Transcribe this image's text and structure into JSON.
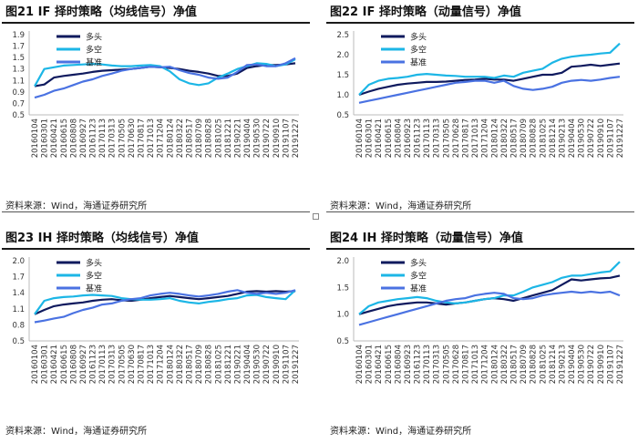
{
  "colors": {
    "long": "#0f1a5e",
    "longshort": "#1cb6e6",
    "benchmark": "#4a72e2"
  },
  "panels": [
    {
      "title": "图21 IF 择时策略（均线信号）净值",
      "source": "资料来源：Wind，海通证券研究所",
      "chart_data": {
        "type": "line",
        "title": "图21 IF 择时策略（均线信号）净值",
        "yticks": [
          "0.5",
          "0.7",
          "0.9",
          "1.1",
          "1.3",
          "1.5",
          "1.7",
          "1.9"
        ],
        "ylim": [
          0.5,
          1.9
        ],
        "xticks": [
          "20160104",
          "20160301",
          "20160421",
          "20160615",
          "20160808",
          "20160927",
          "20161123",
          "20170113",
          "20170313",
          "20170505",
          "20170630",
          "20170817",
          "20171013",
          "20171204",
          "20180124",
          "20180322",
          "20180517",
          "20180709",
          "20180828",
          "20181025",
          "20181221",
          "20190221",
          "20190404",
          "20190530",
          "20190722",
          "20190910",
          "20191107",
          "20191227"
        ],
        "series": [
          {
            "name": "多头",
            "key": "long",
            "values": [
              1.0,
              1.03,
              1.15,
              1.18,
              1.2,
              1.22,
              1.25,
              1.27,
              1.28,
              1.29,
              1.3,
              1.32,
              1.34,
              1.33,
              1.32,
              1.3,
              1.27,
              1.25,
              1.22,
              1.18,
              1.18,
              1.22,
              1.32,
              1.35,
              1.37,
              1.37,
              1.38,
              1.4
            ]
          },
          {
            "name": "多空",
            "key": "longshort",
            "values": [
              1.0,
              1.3,
              1.33,
              1.36,
              1.37,
              1.38,
              1.39,
              1.38,
              1.36,
              1.35,
              1.35,
              1.36,
              1.37,
              1.35,
              1.26,
              1.12,
              1.05,
              1.02,
              1.05,
              1.15,
              1.22,
              1.3,
              1.35,
              1.4,
              1.39,
              1.35,
              1.38,
              1.47
            ]
          },
          {
            "name": "基准",
            "key": "benchmark",
            "values": [
              0.8,
              0.85,
              0.92,
              0.96,
              1.02,
              1.08,
              1.12,
              1.18,
              1.22,
              1.27,
              1.3,
              1.32,
              1.34,
              1.33,
              1.34,
              1.28,
              1.23,
              1.2,
              1.15,
              1.13,
              1.15,
              1.25,
              1.37,
              1.38,
              1.35,
              1.35,
              1.4,
              1.49
            ]
          }
        ]
      }
    },
    {
      "title": "图22 IF 择时策略（动量信号）净值",
      "source": "资料来源：Wind，海通证券研究所",
      "chart_data": {
        "type": "line",
        "title": "图22 IF 择时策略（动量信号）净值",
        "yticks": [
          "0.5",
          "1.0",
          "1.5",
          "2.0",
          "2.5"
        ],
        "ylim": [
          0.5,
          2.5
        ],
        "xticks": [
          "20160104",
          "20160301",
          "20160421",
          "20160615",
          "20160804",
          "20160923",
          "20161123",
          "20170113",
          "20170313",
          "20170505",
          "20170628",
          "20170817",
          "20171013",
          "20171204",
          "20180124",
          "20180322",
          "20180517",
          "20180709",
          "20180828",
          "20181025",
          "20181214",
          "20190213",
          "20190404",
          "20190530",
          "20190722",
          "20190910",
          "20191107",
          "20191227"
        ],
        "series": [
          {
            "name": "多头",
            "key": "long",
            "values": [
              1.0,
              1.08,
              1.15,
              1.2,
              1.25,
              1.28,
              1.3,
              1.32,
              1.32,
              1.33,
              1.35,
              1.37,
              1.38,
              1.4,
              1.38,
              1.38,
              1.35,
              1.4,
              1.45,
              1.5,
              1.5,
              1.55,
              1.7,
              1.72,
              1.75,
              1.72,
              1.75,
              1.78
            ]
          },
          {
            "name": "多空",
            "key": "longshort",
            "values": [
              1.0,
              1.25,
              1.35,
              1.4,
              1.42,
              1.45,
              1.5,
              1.52,
              1.5,
              1.48,
              1.47,
              1.45,
              1.45,
              1.45,
              1.42,
              1.48,
              1.45,
              1.55,
              1.6,
              1.65,
              1.8,
              1.9,
              1.95,
              1.98,
              2.0,
              2.03,
              2.05,
              2.28
            ]
          },
          {
            "name": "基准",
            "key": "benchmark",
            "values": [
              0.8,
              0.85,
              0.9,
              0.95,
              1.0,
              1.05,
              1.1,
              1.15,
              1.2,
              1.25,
              1.3,
              1.32,
              1.35,
              1.35,
              1.3,
              1.35,
              1.22,
              1.15,
              1.12,
              1.15,
              1.2,
              1.3,
              1.35,
              1.37,
              1.35,
              1.38,
              1.42,
              1.45
            ]
          }
        ]
      }
    },
    {
      "title": "图23 IH 择时策略（均线信号）净值",
      "source": "资料来源：Wind，海通证券研究所",
      "chart_data": {
        "type": "line",
        "title": "图23 IH 择时策略（均线信号）净值",
        "yticks": [
          "0.5",
          "0.8",
          "1.1",
          "1.4",
          "1.7",
          "2.0"
        ],
        "ylim": [
          0.5,
          2.0
        ],
        "xticks": [
          "20160104",
          "20160301",
          "20160421",
          "20160615",
          "20160808",
          "20160927",
          "20161123",
          "20170113",
          "20170313",
          "20170505",
          "20170630",
          "20170817",
          "20171013",
          "20171204",
          "20180124",
          "20180322",
          "20180517",
          "20180709",
          "20180828",
          "20181025",
          "20181221",
          "20190221",
          "20190404",
          "20190530",
          "20190722",
          "20190910",
          "20191107",
          "20191227"
        ],
        "series": [
          {
            "name": "多头",
            "key": "long",
            "values": [
              1.0,
              1.08,
              1.15,
              1.18,
              1.2,
              1.22,
              1.25,
              1.27,
              1.28,
              1.26,
              1.25,
              1.27,
              1.3,
              1.32,
              1.34,
              1.32,
              1.3,
              1.28,
              1.3,
              1.32,
              1.34,
              1.38,
              1.42,
              1.43,
              1.42,
              1.43,
              1.42,
              1.43
            ]
          },
          {
            "name": "多空",
            "key": "longshort",
            "values": [
              1.0,
              1.25,
              1.3,
              1.32,
              1.33,
              1.35,
              1.36,
              1.35,
              1.34,
              1.3,
              1.28,
              1.27,
              1.27,
              1.28,
              1.3,
              1.25,
              1.22,
              1.2,
              1.23,
              1.25,
              1.28,
              1.3,
              1.35,
              1.36,
              1.32,
              1.3,
              1.28,
              1.45
            ]
          },
          {
            "name": "基准",
            "key": "benchmark",
            "values": [
              0.85,
              0.88,
              0.92,
              0.95,
              1.02,
              1.08,
              1.12,
              1.18,
              1.2,
              1.25,
              1.28,
              1.3,
              1.35,
              1.38,
              1.4,
              1.38,
              1.35,
              1.33,
              1.35,
              1.38,
              1.42,
              1.45,
              1.4,
              1.38,
              1.4,
              1.38,
              1.4,
              1.45
            ]
          }
        ]
      }
    },
    {
      "title": "图24 IH 择时策略（动量信号）净值",
      "source": "资料来源：Wind，海通证券研究所",
      "chart_data": {
        "type": "line",
        "title": "图24 IH 择时策略（动量信号）净值",
        "yticks": [
          "0.5",
          "1.0",
          "1.5",
          "2.0"
        ],
        "ylim": [
          0.5,
          2.0
        ],
        "xticks": [
          "20160104",
          "20160301",
          "20160421",
          "20160615",
          "20160804",
          "20160923",
          "20161123",
          "20170113",
          "20170313",
          "20170505",
          "20170628",
          "20170817",
          "20171013",
          "20171204",
          "20180124",
          "20180322",
          "20180517",
          "20180709",
          "20180828",
          "20181025",
          "20181214",
          "20190213",
          "20190404",
          "20190530",
          "20190722",
          "20190910",
          "20191107",
          "20191227"
        ],
        "series": [
          {
            "name": "多头",
            "key": "long",
            "values": [
              1.0,
              1.05,
              1.1,
              1.15,
              1.18,
              1.2,
              1.22,
              1.22,
              1.2,
              1.18,
              1.2,
              1.22,
              1.25,
              1.28,
              1.3,
              1.28,
              1.25,
              1.3,
              1.35,
              1.4,
              1.45,
              1.55,
              1.65,
              1.63,
              1.65,
              1.67,
              1.68,
              1.72
            ]
          },
          {
            "name": "多空",
            "key": "longshort",
            "values": [
              1.0,
              1.15,
              1.22,
              1.25,
              1.28,
              1.3,
              1.32,
              1.3,
              1.25,
              1.22,
              1.2,
              1.22,
              1.25,
              1.28,
              1.3,
              1.35,
              1.35,
              1.42,
              1.5,
              1.55,
              1.6,
              1.68,
              1.72,
              1.72,
              1.75,
              1.78,
              1.8,
              1.98
            ]
          },
          {
            "name": "基准",
            "key": "benchmark",
            "values": [
              0.8,
              0.85,
              0.9,
              0.95,
              1.0,
              1.05,
              1.1,
              1.15,
              1.2,
              1.25,
              1.28,
              1.3,
              1.35,
              1.38,
              1.4,
              1.38,
              1.3,
              1.28,
              1.3,
              1.35,
              1.38,
              1.4,
              1.42,
              1.4,
              1.42,
              1.4,
              1.42,
              1.35
            ]
          }
        ]
      }
    }
  ]
}
